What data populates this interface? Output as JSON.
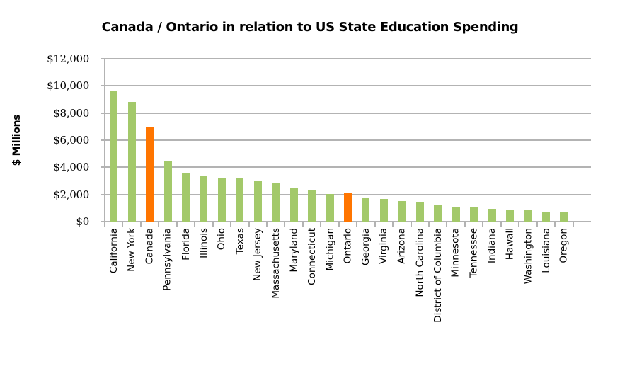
{
  "chart_data": {
    "type": "bar",
    "title": "Canada / Ontario in relation to US State Education Spending",
    "xlabel": "",
    "ylabel": "$ Millions",
    "ylim": [
      0,
      12000
    ],
    "y_ticks": [
      "$0",
      "$2,000",
      "$4,000",
      "$6,000",
      "$8,000",
      "$10,000",
      "$12,000"
    ],
    "grid": true,
    "legend": null,
    "colors": {
      "us_state": "#A3C96A",
      "canada_ontario": "#FF7500"
    },
    "categories": [
      "California",
      "New York",
      "Canada",
      "Pennsylvania",
      "Florida",
      "Illinois",
      "Ohio",
      "Texas",
      "New Jersey",
      "Massachusetts",
      "Maryland",
      "Connecticut",
      "Michigan",
      "Ontario",
      "Georgia",
      "Virginia",
      "Arizona",
      "North Carolina",
      "District of Columbia",
      "Minnesota",
      "Tennessee",
      "Indiana",
      "Hawaii",
      "Washington",
      "Louisiana",
      "Oregon"
    ],
    "values": [
      9600,
      8800,
      7000,
      4450,
      3570,
      3400,
      3200,
      3200,
      3000,
      2850,
      2500,
      2270,
      2060,
      2070,
      1700,
      1650,
      1500,
      1400,
      1250,
      1070,
      1020,
      920,
      870,
      820,
      720,
      720
    ],
    "highlight": [
      "Canada",
      "Ontario"
    ]
  }
}
